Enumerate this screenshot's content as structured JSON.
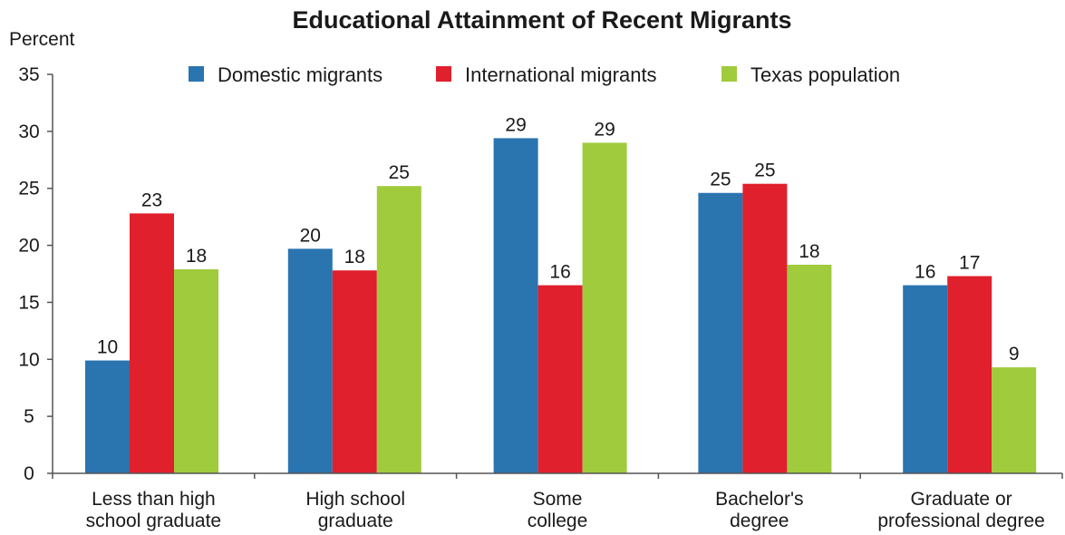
{
  "chart_data": {
    "type": "bar",
    "title": "Educational Attainment of Recent Migrants",
    "ylabel": "Percent",
    "xlabel": "",
    "ylim": [
      0,
      35
    ],
    "yticks": [
      0,
      5,
      10,
      15,
      20,
      25,
      30,
      35
    ],
    "grid": false,
    "legend_position": "top",
    "categories": [
      [
        "Less than high",
        "school graduate"
      ],
      [
        "High school",
        "graduate"
      ],
      [
        "Some",
        "college"
      ],
      [
        "Bachelor's",
        "degree"
      ],
      [
        "Graduate or",
        "professional degree"
      ]
    ],
    "series": [
      {
        "name": "Domestic migrants",
        "color": "#2a74b0",
        "values": [
          9.9,
          19.7,
          29.4,
          24.6,
          16.5
        ],
        "labels": [
          "10",
          "20",
          "29",
          "25",
          "16"
        ]
      },
      {
        "name": "International migrants",
        "color": "#e0202c",
        "values": [
          22.8,
          17.8,
          16.5,
          25.4,
          17.3
        ],
        "labels": [
          "23",
          "18",
          "16",
          "25",
          "17"
        ]
      },
      {
        "name": "Texas population",
        "color": "#9fcb3c",
        "values": [
          17.9,
          25.2,
          29.0,
          18.3,
          9.3
        ],
        "labels": [
          "18",
          "25",
          "29",
          "18",
          "9"
        ]
      }
    ]
  }
}
